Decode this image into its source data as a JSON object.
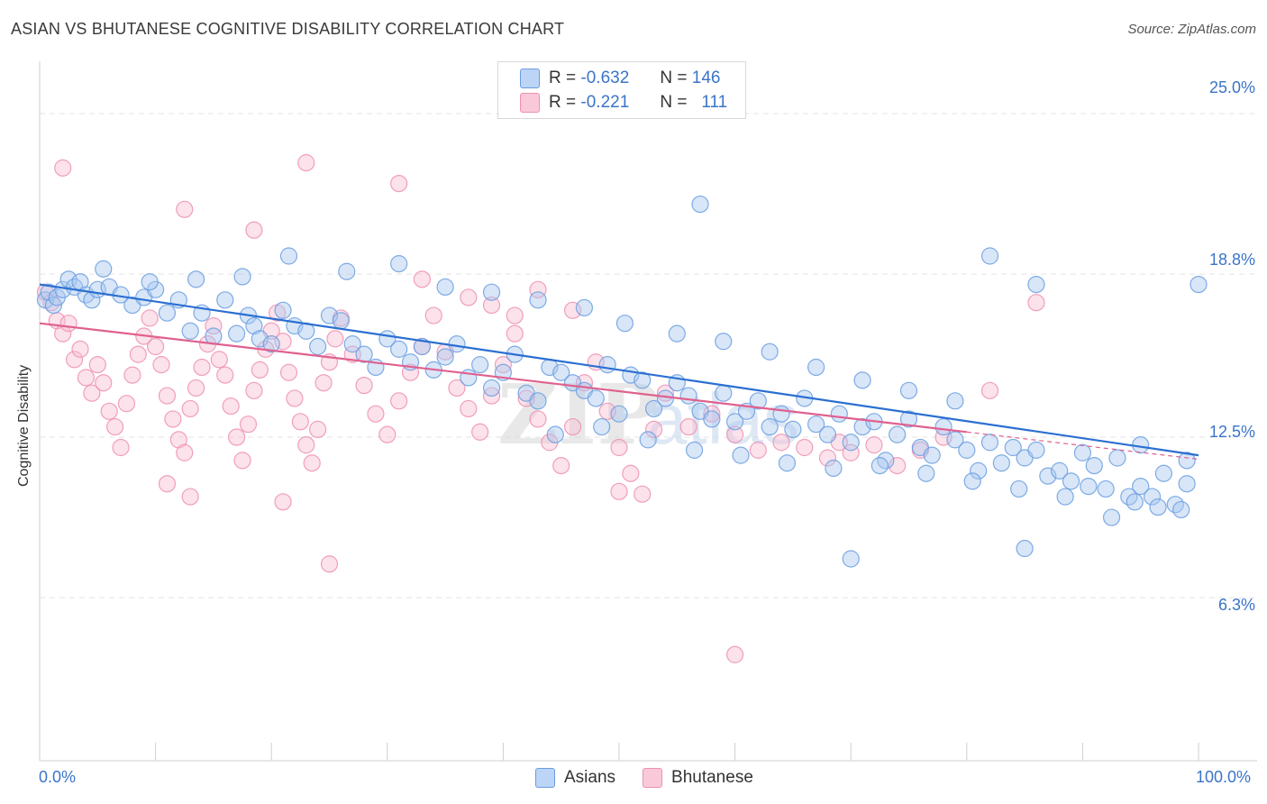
{
  "title": "ASIAN VS BHUTANESE COGNITIVE DISABILITY CORRELATION CHART",
  "source": "Source: ZipAtlas.com",
  "watermark": {
    "zip": "ZIP",
    "atlas": "atlas"
  },
  "legend_top": {
    "asians": {
      "r_label": "R =",
      "r_value": "-0.632",
      "n_label": "N =",
      "n_value": "146"
    },
    "bhutanese": {
      "r_label": "R =",
      "r_value": "-0.221",
      "n_label": "N =",
      "n_value": "111"
    }
  },
  "legend_bottom": {
    "asians": "Asians",
    "bhutanese": "Bhutanese"
  },
  "colors": {
    "asians": "#6a9de0",
    "asians_fill": "#a9c7f0",
    "asians_line": "#2b6fd1",
    "bhutanese": "#ee8fb0",
    "bhutanese_fill": "#f7bfd2",
    "bhutanese_line": "#e0608f",
    "tick_text": "#3b74c9",
    "grid": "#e3e3e3"
  },
  "chart_data": {
    "type": "scatter",
    "title": "ASIAN VS BHUTANESE COGNITIVE DISABILITY CORRELATION CHART",
    "xlabel": "",
    "ylabel": "Cognitive Disability",
    "xlim": [
      0,
      100
    ],
    "ylim": [
      0,
      27.3
    ],
    "x_tick_labels": [
      {
        "value": 0,
        "label": "0.0%"
      },
      {
        "value": 100,
        "label": "100.0%"
      }
    ],
    "y_ticks": [
      {
        "value": 6.3,
        "label": "6.3%"
      },
      {
        "value": 12.5,
        "label": "12.5%"
      },
      {
        "value": 18.8,
        "label": "18.8%"
      },
      {
        "value": 25.0,
        "label": "25.0%"
      }
    ],
    "series": [
      {
        "name": "Asians",
        "trend": {
          "x": [
            0,
            100
          ],
          "y": [
            18.4,
            11.8
          ]
        },
        "points": [
          [
            0.5,
            17.8
          ],
          [
            0.8,
            18.1
          ],
          [
            1.2,
            17.6
          ],
          [
            1.5,
            17.9
          ],
          [
            2,
            18.2
          ],
          [
            2.5,
            18.6
          ],
          [
            3,
            18.3
          ],
          [
            3.5,
            18.5
          ],
          [
            4,
            18.0
          ],
          [
            4.5,
            17.8
          ],
          [
            5,
            18.2
          ],
          [
            6,
            18.3
          ],
          [
            7,
            18.0
          ],
          [
            8,
            17.6
          ],
          [
            9,
            17.9
          ],
          [
            10,
            18.2
          ],
          [
            11,
            17.3
          ],
          [
            12,
            17.8
          ],
          [
            13,
            16.6
          ],
          [
            14,
            17.3
          ],
          [
            15,
            16.4
          ],
          [
            16,
            17.8
          ],
          [
            17,
            16.5
          ],
          [
            18,
            17.2
          ],
          [
            18.5,
            16.8
          ],
          [
            19,
            16.3
          ],
          [
            20,
            16.1
          ],
          [
            21,
            17.4
          ],
          [
            22,
            16.8
          ],
          [
            23,
            16.6
          ],
          [
            24,
            16.0
          ],
          [
            25,
            17.2
          ],
          [
            26,
            17.0
          ],
          [
            27,
            16.1
          ],
          [
            28,
            15.7
          ],
          [
            29,
            15.2
          ],
          [
            30,
            16.3
          ],
          [
            31,
            15.9
          ],
          [
            32,
            15.4
          ],
          [
            33,
            16.0
          ],
          [
            34,
            15.1
          ],
          [
            35,
            15.6
          ],
          [
            36,
            16.1
          ],
          [
            37,
            14.8
          ],
          [
            38,
            15.3
          ],
          [
            39,
            14.4
          ],
          [
            40,
            15.0
          ],
          [
            41,
            15.7
          ],
          [
            42,
            14.2
          ],
          [
            43,
            13.9
          ],
          [
            44,
            15.2
          ],
          [
            45,
            15.0
          ],
          [
            46,
            14.6
          ],
          [
            47,
            14.3
          ],
          [
            48,
            14.0
          ],
          [
            49,
            15.3
          ],
          [
            50,
            13.4
          ],
          [
            51,
            14.9
          ],
          [
            52,
            14.7
          ],
          [
            53,
            13.6
          ],
          [
            54,
            14.0
          ],
          [
            55,
            14.6
          ],
          [
            56,
            14.1
          ],
          [
            57,
            13.5
          ],
          [
            58,
            13.2
          ],
          [
            59,
            14.2
          ],
          [
            60,
            13.1
          ],
          [
            61,
            13.5
          ],
          [
            62,
            13.9
          ],
          [
            63,
            12.9
          ],
          [
            64,
            13.4
          ],
          [
            65,
            12.8
          ],
          [
            66,
            14.0
          ],
          [
            67,
            13.0
          ],
          [
            68,
            12.6
          ],
          [
            69,
            13.4
          ],
          [
            70,
            12.3
          ],
          [
            71,
            12.9
          ],
          [
            72,
            13.1
          ],
          [
            73,
            11.6
          ],
          [
            74,
            12.6
          ],
          [
            75,
            13.2
          ],
          [
            76,
            12.1
          ],
          [
            77,
            11.8
          ],
          [
            78,
            12.9
          ],
          [
            79,
            12.4
          ],
          [
            80,
            12.0
          ],
          [
            81,
            11.2
          ],
          [
            82,
            12.3
          ],
          [
            83,
            11.5
          ],
          [
            84,
            12.1
          ],
          [
            85,
            11.7
          ],
          [
            86,
            12.0
          ],
          [
            87,
            11.0
          ],
          [
            88,
            11.2
          ],
          [
            89,
            10.8
          ],
          [
            90,
            11.9
          ],
          [
            91,
            11.4
          ],
          [
            92,
            10.5
          ],
          [
            93,
            11.7
          ],
          [
            94,
            10.2
          ],
          [
            95,
            10.6
          ],
          [
            96,
            10.2
          ],
          [
            97,
            11.1
          ],
          [
            98,
            9.9
          ],
          [
            99,
            10.7
          ],
          [
            100,
            18.4
          ],
          [
            5.5,
            19.0
          ],
          [
            9.5,
            18.5
          ],
          [
            13.5,
            18.6
          ],
          [
            17.5,
            18.7
          ],
          [
            21.5,
            19.5
          ],
          [
            26.5,
            18.9
          ],
          [
            31,
            19.2
          ],
          [
            35,
            18.3
          ],
          [
            39,
            18.1
          ],
          [
            43,
            17.8
          ],
          [
            47,
            17.5
          ],
          [
            50.5,
            16.9
          ],
          [
            55,
            16.5
          ],
          [
            59,
            16.2
          ],
          [
            63,
            15.8
          ],
          [
            67,
            15.2
          ],
          [
            71,
            14.7
          ],
          [
            75,
            14.3
          ],
          [
            79,
            13.9
          ],
          [
            82,
            19.5
          ],
          [
            86,
            18.4
          ],
          [
            44.5,
            12.6
          ],
          [
            48.5,
            12.9
          ],
          [
            52.5,
            12.4
          ],
          [
            56.5,
            12.0
          ],
          [
            60.5,
            11.8
          ],
          [
            64.5,
            11.5
          ],
          [
            68.5,
            11.3
          ],
          [
            72.5,
            11.4
          ],
          [
            76.5,
            11.1
          ],
          [
            80.5,
            10.8
          ],
          [
            84.5,
            10.5
          ],
          [
            88.5,
            10.2
          ],
          [
            90.5,
            10.6
          ],
          [
            92.5,
            9.4
          ],
          [
            94.5,
            10.0
          ],
          [
            96.5,
            9.8
          ],
          [
            98.5,
            9.7
          ],
          [
            57,
            21.5
          ],
          [
            70,
            7.8
          ],
          [
            85,
            8.2
          ],
          [
            95,
            12.2
          ],
          [
            99,
            11.6
          ]
        ]
      },
      {
        "name": "Bhutanese",
        "trend": {
          "x": [
            0,
            80
          ],
          "y": [
            16.9,
            12.7
          ]
        },
        "points": [
          [
            0.5,
            18.1
          ],
          [
            1,
            17.7
          ],
          [
            1.5,
            17.0
          ],
          [
            2,
            16.5
          ],
          [
            2.5,
            16.9
          ],
          [
            3,
            15.5
          ],
          [
            3.5,
            15.9
          ],
          [
            4,
            14.8
          ],
          [
            4.5,
            14.2
          ],
          [
            5,
            15.3
          ],
          [
            5.5,
            14.6
          ],
          [
            6,
            13.5
          ],
          [
            6.5,
            12.9
          ],
          [
            7,
            12.1
          ],
          [
            7.5,
            13.8
          ],
          [
            8,
            14.9
          ],
          [
            8.5,
            15.7
          ],
          [
            9,
            16.4
          ],
          [
            9.5,
            17.1
          ],
          [
            10,
            16.0
          ],
          [
            10.5,
            15.3
          ],
          [
            11,
            14.1
          ],
          [
            11.5,
            13.2
          ],
          [
            12,
            12.4
          ],
          [
            12.5,
            11.9
          ],
          [
            13,
            13.6
          ],
          [
            13.5,
            14.4
          ],
          [
            14,
            15.2
          ],
          [
            14.5,
            16.1
          ],
          [
            15,
            16.8
          ],
          [
            15.5,
            15.5
          ],
          [
            16,
            14.9
          ],
          [
            16.5,
            13.7
          ],
          [
            17,
            12.5
          ],
          [
            17.5,
            11.6
          ],
          [
            18,
            13.0
          ],
          [
            18.5,
            14.3
          ],
          [
            19,
            15.1
          ],
          [
            19.5,
            15.9
          ],
          [
            20,
            16.6
          ],
          [
            20.5,
            17.3
          ],
          [
            21,
            16.2
          ],
          [
            21.5,
            15.0
          ],
          [
            22,
            14.0
          ],
          [
            22.5,
            13.1
          ],
          [
            23,
            12.2
          ],
          [
            23.5,
            11.5
          ],
          [
            24,
            12.8
          ],
          [
            24.5,
            14.6
          ],
          [
            25,
            15.4
          ],
          [
            25.5,
            16.3
          ],
          [
            26,
            17.1
          ],
          [
            27,
            15.7
          ],
          [
            28,
            14.5
          ],
          [
            29,
            13.4
          ],
          [
            30,
            12.6
          ],
          [
            31,
            13.9
          ],
          [
            32,
            15.0
          ],
          [
            33,
            16.0
          ],
          [
            34,
            17.2
          ],
          [
            35,
            15.8
          ],
          [
            36,
            14.4
          ],
          [
            37,
            13.6
          ],
          [
            38,
            12.7
          ],
          [
            39,
            14.1
          ],
          [
            40,
            15.3
          ],
          [
            41,
            16.5
          ],
          [
            42,
            14.0
          ],
          [
            43,
            13.2
          ],
          [
            44,
            12.3
          ],
          [
            45,
            11.4
          ],
          [
            46,
            12.9
          ],
          [
            47,
            14.6
          ],
          [
            48,
            15.4
          ],
          [
            49,
            13.5
          ],
          [
            50,
            12.1
          ],
          [
            51,
            11.1
          ],
          [
            52,
            10.3
          ],
          [
            53,
            12.8
          ],
          [
            54,
            14.2
          ],
          [
            56,
            12.9
          ],
          [
            58,
            13.4
          ],
          [
            60,
            12.6
          ],
          [
            62,
            12.0
          ],
          [
            64,
            12.3
          ],
          [
            66,
            12.1
          ],
          [
            68,
            11.7
          ],
          [
            70,
            11.9
          ],
          [
            72,
            12.2
          ],
          [
            74,
            11.4
          ],
          [
            76,
            12.0
          ],
          [
            78,
            12.5
          ],
          [
            2,
            22.9
          ],
          [
            12.5,
            21.3
          ],
          [
            18.5,
            20.5
          ],
          [
            23,
            23.1
          ],
          [
            31,
            22.3
          ],
          [
            33,
            18.6
          ],
          [
            37,
            17.9
          ],
          [
            39,
            17.6
          ],
          [
            41,
            17.2
          ],
          [
            43,
            18.2
          ],
          [
            46,
            17.4
          ],
          [
            11,
            10.7
          ],
          [
            13,
            10.2
          ],
          [
            21,
            10.0
          ],
          [
            25,
            7.6
          ],
          [
            50,
            10.4
          ],
          [
            60,
            4.1
          ],
          [
            69,
            12.3
          ],
          [
            86,
            17.7
          ],
          [
            82,
            14.3
          ]
        ]
      }
    ]
  }
}
